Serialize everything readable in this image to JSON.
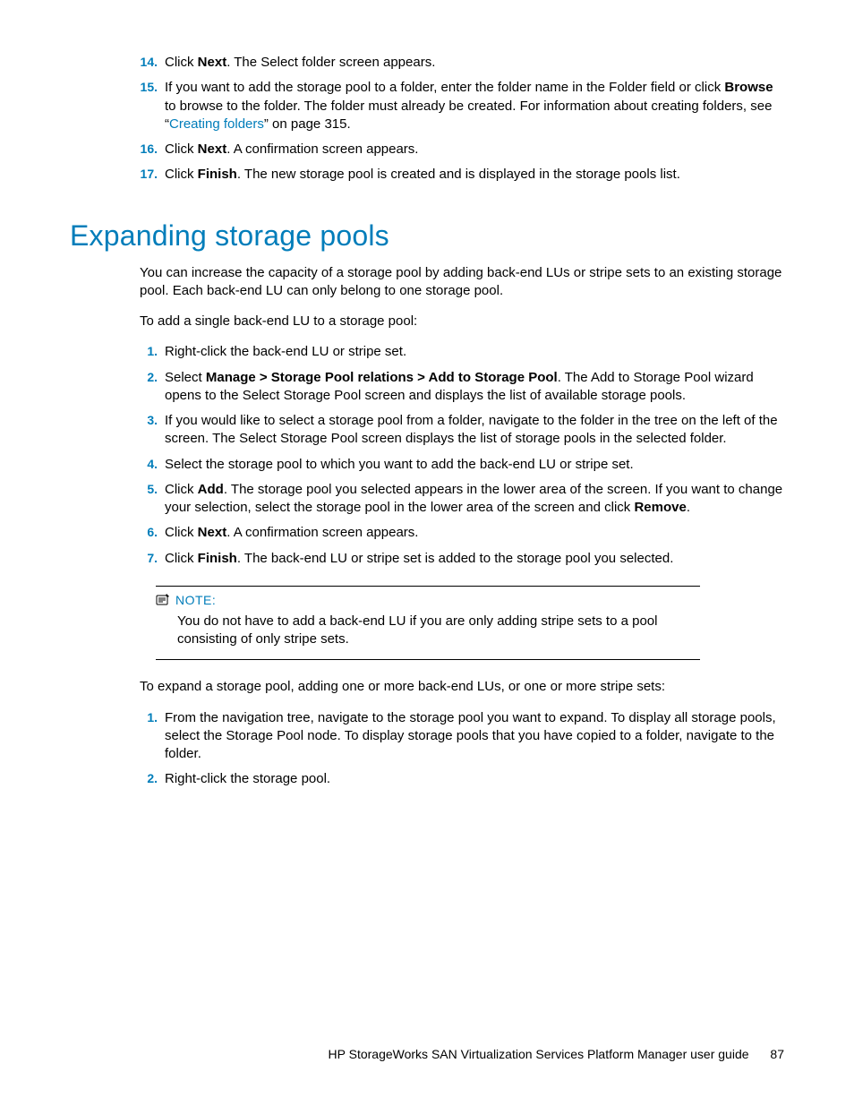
{
  "colors": {
    "accent": "#007dba",
    "text": "#000000",
    "background": "#ffffff",
    "rule": "#000000"
  },
  "typography": {
    "body_size_pt": 11,
    "heading_size_pt": 24,
    "heading_weight": 300,
    "body_font": "Helvetica Neue, Arial, sans-serif"
  },
  "top_list": {
    "start": 14,
    "items": [
      {
        "num": "14.",
        "parts": [
          "Click ",
          {
            "b": "Next"
          },
          ". The Select folder screen appears."
        ]
      },
      {
        "num": "15.",
        "parts": [
          "If you want to add the storage pool to a folder, enter the folder name in the Folder field or click ",
          {
            "b": "Browse"
          },
          " to browse to the folder. The folder must already be created. For information about creating folders, see “",
          {
            "link": "Creating folders"
          },
          "” on page 315."
        ]
      },
      {
        "num": "16.",
        "parts": [
          "Click ",
          {
            "b": "Next"
          },
          ". A confirmation screen appears."
        ]
      },
      {
        "num": "17.",
        "parts": [
          "Click ",
          {
            "b": "Finish"
          },
          ". The new storage pool is created and is displayed in the storage pools list."
        ]
      }
    ]
  },
  "heading": "Expanding storage pools",
  "intro1": "You can increase the capacity of a storage pool by adding back-end LUs or stripe sets to an existing storage pool. Each back-end LU can only belong to one storage pool.",
  "intro2": "To add a single back-end LU to a storage pool:",
  "mid_list": {
    "items": [
      {
        "num": "1.",
        "parts": [
          "Right-click the back-end LU or stripe set."
        ]
      },
      {
        "num": "2.",
        "parts": [
          "Select ",
          {
            "b": "Manage > Storage Pool relations > Add to Storage Pool"
          },
          ". The Add to Storage Pool wizard opens to the Select Storage Pool screen and displays the list of available storage pools."
        ]
      },
      {
        "num": "3.",
        "parts": [
          "If you would like to select a storage pool from a folder, navigate to the folder in the tree on the left of the screen. The Select Storage Pool screen displays the list of storage pools in the selected folder."
        ]
      },
      {
        "num": "4.",
        "parts": [
          "Select the storage pool to which you want to add the back-end LU or stripe set."
        ]
      },
      {
        "num": "5.",
        "parts": [
          "Click ",
          {
            "b": "Add"
          },
          ". The storage pool you selected appears in the lower area of the screen. If you want to change your selection, select the storage pool in the lower area of the screen and click ",
          {
            "b": "Remove"
          },
          "."
        ]
      },
      {
        "num": "6.",
        "parts": [
          "Click ",
          {
            "b": "Next"
          },
          ". A confirmation screen appears."
        ]
      },
      {
        "num": "7.",
        "parts": [
          "Click ",
          {
            "b": "Finish"
          },
          ". The back-end LU or stripe set is added to the storage pool you selected."
        ]
      }
    ]
  },
  "note": {
    "label": "NOTE:",
    "text": "You do not have to add a back-end LU if you are only adding stripe sets to a pool consisting of only stripe sets."
  },
  "after_note": "To expand a storage pool, adding one or more back-end LUs, or one or more stripe sets:",
  "bottom_list": {
    "items": [
      {
        "num": "1.",
        "parts": [
          "From the navigation tree, navigate to the storage pool you want to expand. To display all storage pools, select the Storage Pool node. To display storage pools that you have copied to a folder, navigate to the folder."
        ]
      },
      {
        "num": "2.",
        "parts": [
          "Right-click the storage pool."
        ]
      }
    ]
  },
  "footer": {
    "title": "HP StorageWorks SAN Virtualization Services Platform Manager user guide",
    "page": "87"
  }
}
